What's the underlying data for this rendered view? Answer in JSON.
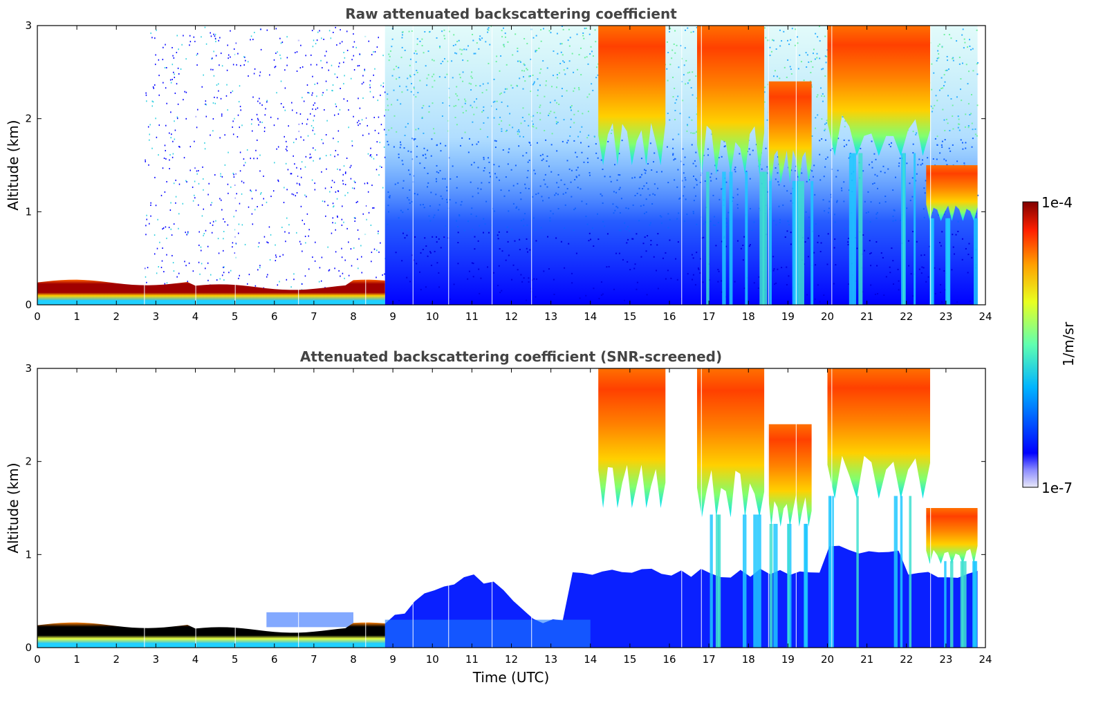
{
  "chart_data": [
    {
      "type": "heatmap",
      "title": "Raw attenuated backscattering coefficient",
      "xlabel": "",
      "ylabel": "Altitude (km)",
      "xlim": [
        0,
        24
      ],
      "ylim": [
        0,
        3
      ],
      "xticks": [
        "0",
        "1",
        "2",
        "3",
        "4",
        "5",
        "6",
        "7",
        "8",
        "9",
        "10",
        "11",
        "12",
        "13",
        "14",
        "15",
        "16",
        "17",
        "18",
        "19",
        "20",
        "21",
        "22",
        "23",
        "24"
      ],
      "yticks": [
        "0",
        "1",
        "2",
        "3"
      ],
      "features": [
        {
          "x0": 0,
          "x1": 8.8,
          "y0": 0.1,
          "y1": 0.22,
          "level": "max",
          "desc": "boundary layer"
        },
        {
          "x0": 14.2,
          "x1": 15.9,
          "y0": 1.5,
          "y1": 3.0,
          "level": "high"
        },
        {
          "x0": 16.7,
          "x1": 18.4,
          "y0": 1.4,
          "y1": 3.0,
          "level": "high"
        },
        {
          "x0": 18.5,
          "x1": 19.6,
          "y0": 1.3,
          "y1": 2.4,
          "level": "high"
        },
        {
          "x0": 20.0,
          "x1": 22.6,
          "y0": 1.6,
          "y1": 3.0,
          "level": "high"
        },
        {
          "x0": 22.5,
          "x1": 23.8,
          "y0": 0.9,
          "y1": 1.5,
          "level": "high"
        }
      ]
    },
    {
      "type": "heatmap",
      "title": "Attenuated backscattering coefficient (SNR-screened)",
      "xlabel": "Time (UTC)",
      "ylabel": "Altitude (km)",
      "xlim": [
        0,
        24
      ],
      "ylim": [
        0,
        3
      ],
      "xticks": [
        "0",
        "1",
        "2",
        "3",
        "4",
        "5",
        "6",
        "7",
        "8",
        "9",
        "10",
        "11",
        "12",
        "13",
        "14",
        "15",
        "16",
        "17",
        "18",
        "19",
        "20",
        "21",
        "22",
        "23",
        "24"
      ],
      "yticks": [
        "0",
        "1",
        "2",
        "3"
      ],
      "features": [
        {
          "x0": 0,
          "x1": 8.8,
          "y0": 0.1,
          "y1": 0.22,
          "level": "saturated"
        },
        {
          "x0": 8.8,
          "x1": 23.8,
          "y0": 0,
          "y1": 0.8,
          "level": "low"
        },
        {
          "x0": 14.2,
          "x1": 15.9,
          "y0": 1.5,
          "y1": 3.0,
          "level": "high"
        },
        {
          "x0": 16.7,
          "x1": 18.4,
          "y0": 1.4,
          "y1": 3.0,
          "level": "high"
        },
        {
          "x0": 18.5,
          "x1": 19.6,
          "y0": 1.3,
          "y1": 2.4,
          "level": "high"
        },
        {
          "x0": 20.0,
          "x1": 22.6,
          "y0": 1.6,
          "y1": 3.0,
          "level": "high"
        },
        {
          "x0": 22.5,
          "x1": 23.8,
          "y0": 0.9,
          "y1": 1.5,
          "level": "high"
        }
      ]
    }
  ],
  "colorbar": {
    "label": "1/m/sr",
    "max_label": "1e-4",
    "min_label": "1e-7",
    "scale": "log",
    "colormap": "jet",
    "colors": [
      "#e8e8f8",
      "#0000ff",
      "#00c8ff",
      "#80ff80",
      "#ffd000",
      "#ff4000",
      "#800000"
    ]
  }
}
